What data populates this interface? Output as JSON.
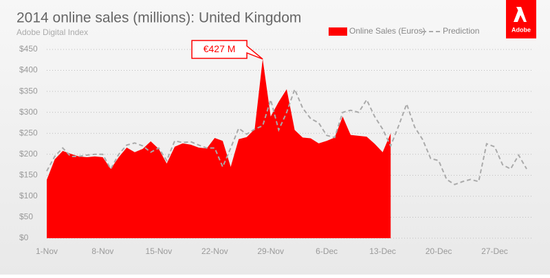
{
  "chart_data": {
    "type": "area-line",
    "title": "2014 online sales (millions): United Kingdom",
    "subtitle": "Adobe Digital Index",
    "logo": "Adobe",
    "categories": [
      "1-Nov",
      null,
      null,
      null,
      null,
      null,
      null,
      "8-Nov",
      null,
      null,
      null,
      null,
      null,
      null,
      "15-Nov",
      null,
      null,
      null,
      null,
      null,
      null,
      "22-Nov",
      null,
      null,
      null,
      null,
      null,
      null,
      "29-Nov",
      null,
      null,
      null,
      null,
      null,
      null,
      "6-Dec",
      null,
      null,
      null,
      null,
      null,
      null,
      "13-Dec",
      null,
      null,
      null,
      null,
      null,
      null,
      "20-Dec",
      null,
      null,
      null,
      null,
      null,
      null,
      "27-Dec",
      null,
      null,
      null,
      null
    ],
    "series": [
      {
        "name": "Online Sales (Euros)",
        "color": "#ff0000",
        "style": "area",
        "values": [
          139,
          188,
          208,
          201,
          195,
          193,
          195,
          193,
          165,
          193,
          216,
          205,
          213,
          231,
          213,
          178,
          218,
          226,
          223,
          216,
          214,
          239,
          232,
          170,
          236,
          241,
          260,
          427,
          290,
          325,
          355,
          258,
          240,
          238,
          226,
          232,
          240,
          290,
          246,
          244,
          242,
          225,
          205,
          250,
          null,
          null,
          null,
          null,
          null,
          null,
          null,
          null,
          null,
          null,
          null,
          null,
          null,
          null,
          null,
          null,
          null
        ]
      },
      {
        "name": "Prediction",
        "color": "#aaaaaa",
        "style": "dashed",
        "values": [
          160,
          195,
          215,
          195,
          195,
          198,
          200,
          200,
          165,
          200,
          222,
          227,
          220,
          205,
          215,
          185,
          232,
          228,
          230,
          222,
          215,
          215,
          170,
          215,
          262,
          248,
          260,
          268,
          330,
          258,
          300,
          355,
          310,
          285,
          275,
          245,
          240,
          300,
          305,
          300,
          330,
          290,
          260,
          220,
          268,
          320,
          265,
          235,
          190,
          185,
          140,
          128,
          135,
          140,
          135,
          225,
          218,
          175,
          165,
          198,
          165
        ]
      }
    ],
    "annotation": {
      "text": "€427 M",
      "series": 0,
      "index": 27
    },
    "ylim": [
      0,
      450
    ],
    "yticks": [
      {
        "value": 0,
        "label": "$0"
      },
      {
        "value": 50,
        "label": "$50"
      },
      {
        "value": 100,
        "label": "$100"
      },
      {
        "value": 150,
        "label": "$150"
      },
      {
        "value": 200,
        "label": "$200"
      },
      {
        "value": 250,
        "label": "$250"
      },
      {
        "value": 300,
        "label": "$300"
      },
      {
        "value": 350,
        "label": "$350"
      },
      {
        "value": 400,
        "label": "$400"
      },
      {
        "value": 450,
        "label": "$450"
      }
    ],
    "grid": true
  }
}
